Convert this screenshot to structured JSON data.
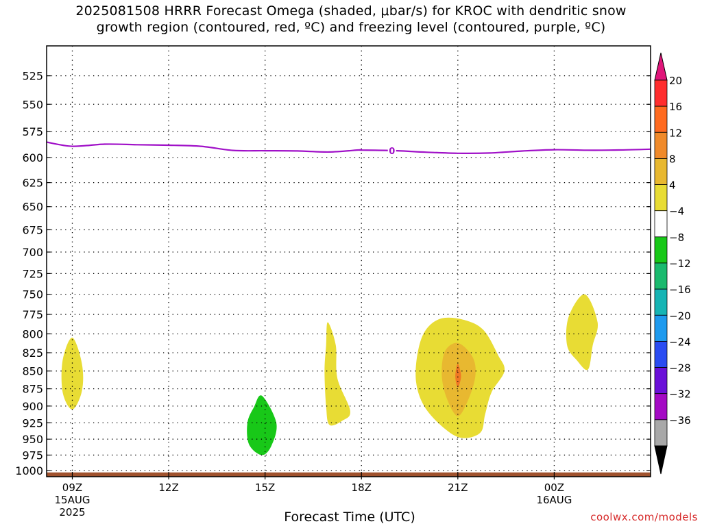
{
  "chart_data": {
    "type": "contour",
    "title_line1": "2025081508 HRRR Forecast Omega (shaded, μbar/s) for KROC with dendritic snow",
    "title_line2": "growth region (contoured, red, ºC) and freezing level (contoured, purple, ºC)",
    "xlabel": "Forecast Time (UTC)",
    "credit": "coolwx.com/models",
    "xlim_hours": [
      -0.8,
      18
    ],
    "x_ticks": [
      {
        "hour": 0,
        "lines": [
          "09Z",
          "15AUG",
          "2025"
        ]
      },
      {
        "hour": 3,
        "lines": [
          "12Z"
        ]
      },
      {
        "hour": 6,
        "lines": [
          "15Z"
        ]
      },
      {
        "hour": 9,
        "lines": [
          "18Z"
        ]
      },
      {
        "hour": 12,
        "lines": [
          "21Z"
        ]
      },
      {
        "hour": 15,
        "lines": [
          "00Z",
          "16AUG"
        ]
      }
    ],
    "ylim_hpa": [
      500,
      1010
    ],
    "y_scale": "log",
    "y_ticks": [
      525,
      550,
      575,
      600,
      625,
      650,
      675,
      700,
      725,
      750,
      775,
      800,
      825,
      850,
      875,
      900,
      925,
      950,
      975,
      1000
    ],
    "grid": "dotted",
    "colorbar": {
      "levels": [
        20,
        16,
        12,
        8,
        4,
        -4,
        -8,
        -12,
        -16,
        -20,
        -24,
        -28,
        -32,
        -36
      ],
      "colors": [
        "#ff2d2d",
        "#ff6a1f",
        "#f08a2a",
        "#e8b830",
        "#e8dc34",
        "#ffffff",
        "#18c818",
        "#1aba6e",
        "#16b4b4",
        "#1e9aee",
        "#2a4cf2",
        "#6a10d8",
        "#a40ac4",
        "#a8a8a8"
      ],
      "top_color": "#e0157a",
      "bottom_color": "#000000"
    },
    "freezing_level": {
      "label": "0",
      "color": "#a010c8",
      "label_hour": 9.95,
      "hours": [
        -0.8,
        0,
        1,
        2,
        3,
        4,
        5,
        6,
        7,
        8,
        8.95,
        9,
        10,
        11,
        12,
        13,
        14,
        15,
        16,
        17,
        18
      ],
      "pressure_hpa": [
        585,
        589,
        587,
        587.5,
        588,
        589,
        593,
        593.3,
        593.5,
        594.5,
        592.5,
        592.7,
        593.2,
        594.7,
        595.8,
        595.5,
        593.6,
        592.3,
        592.8,
        592.6,
        591.8
      ]
    },
    "omega_regions": [
      {
        "value_range": [
          4,
          8
        ],
        "color": "#e8dc34",
        "points": [
          [
            0,
            805
          ],
          [
            0.3,
            840
          ],
          [
            0.3,
            878
          ],
          [
            0,
            905
          ],
          [
            -0.3,
            880
          ],
          [
            -0.3,
            835
          ]
        ]
      },
      {
        "value_range": [
          -8,
          -4
        ],
        "color": "#18c818",
        "points": [
          [
            5.9,
            885
          ],
          [
            6.35,
            925
          ],
          [
            6.2,
            960
          ],
          [
            5.9,
            975
          ],
          [
            5.5,
            958
          ],
          [
            5.45,
            925
          ],
          [
            5.65,
            902
          ]
        ]
      },
      {
        "value_range": [
          4,
          8
        ],
        "color": "#e8dc34",
        "points": [
          [
            7.95,
            785
          ],
          [
            8.2,
            815
          ],
          [
            8.25,
            860
          ],
          [
            8.65,
            907
          ],
          [
            8.4,
            922
          ],
          [
            8.0,
            928
          ],
          [
            7.9,
            900
          ],
          [
            7.85,
            850
          ],
          [
            7.9,
            815
          ]
        ]
      },
      {
        "value_range": [
          4,
          8
        ],
        "color": "#e8dc34",
        "points": [
          [
            11.5,
            780
          ],
          [
            12.2,
            782
          ],
          [
            12.8,
            795
          ],
          [
            13.25,
            828
          ],
          [
            13.45,
            850
          ],
          [
            13.05,
            880
          ],
          [
            12.85,
            912
          ],
          [
            12.7,
            940
          ],
          [
            12.1,
            948
          ],
          [
            11.5,
            930
          ],
          [
            10.95,
            900
          ],
          [
            10.7,
            865
          ],
          [
            10.75,
            825
          ],
          [
            11.0,
            795
          ]
        ]
      },
      {
        "value_range": [
          8,
          12
        ],
        "color": "#e8b830",
        "points": [
          [
            12.0,
            812
          ],
          [
            12.45,
            830
          ],
          [
            12.55,
            855
          ],
          [
            12.35,
            888
          ],
          [
            12.0,
            915
          ],
          [
            11.65,
            888
          ],
          [
            11.5,
            855
          ],
          [
            11.6,
            823
          ]
        ]
      },
      {
        "value_range": [
          12,
          16
        ],
        "color": "#f07824",
        "points": [
          [
            12.0,
            840
          ],
          [
            12.1,
            857
          ],
          [
            12.0,
            873
          ],
          [
            11.92,
            857
          ]
        ]
      },
      {
        "value_range": [
          4,
          8
        ],
        "color": "#e8dc34",
        "points": [
          [
            15.95,
            750
          ],
          [
            16.35,
            785
          ],
          [
            16.2,
            815
          ],
          [
            16.05,
            848
          ],
          [
            15.7,
            835
          ],
          [
            15.4,
            815
          ],
          [
            15.45,
            778
          ]
        ]
      }
    ],
    "terrain_surface_hpa": 1003,
    "terrain_color": "#a0522d"
  }
}
